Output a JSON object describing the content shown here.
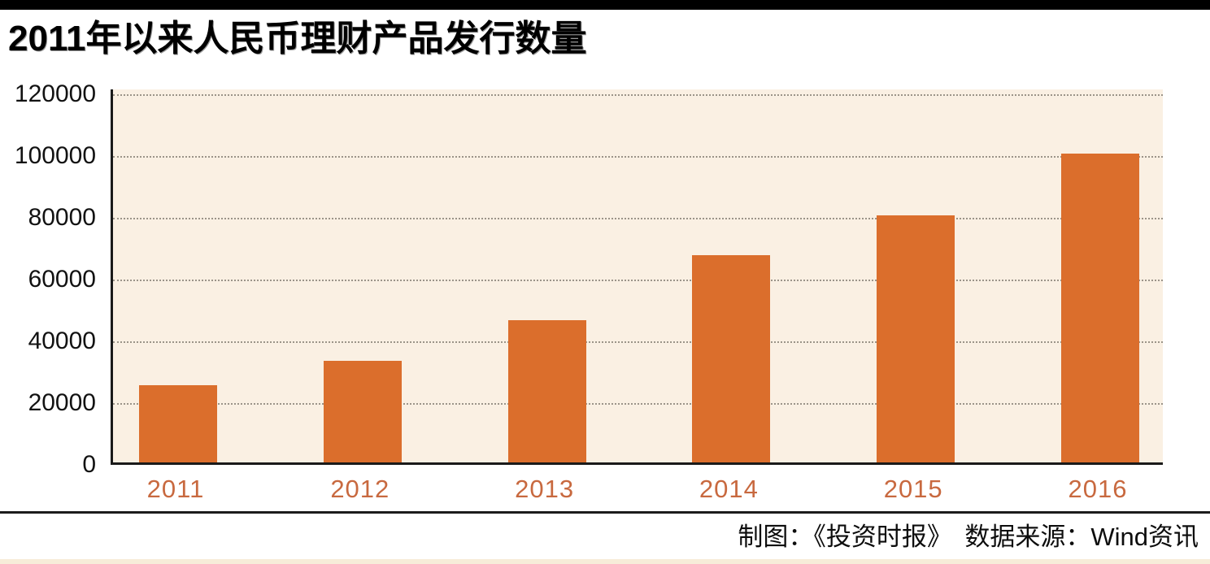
{
  "header": {
    "title": "2011年以来人民币理财产品发行数量"
  },
  "footer": {
    "credit": "制图：《投资时报》　数据来源：Wind资讯"
  },
  "colors": {
    "bar": "#db6e2c",
    "plot_background": "#faf0e3",
    "year_label": "#c8693f",
    "gridline": "#8b857a",
    "axis_line": "#1a1a1a",
    "top_bar": "#000000",
    "bottom_strip": "#f7ecd9"
  },
  "chart_data": {
    "type": "bar",
    "categories": [
      "2011",
      "2012",
      "2013",
      "2014",
      "2015",
      "2016"
    ],
    "values": [
      25000,
      33000,
      46000,
      67000,
      80000,
      100000
    ],
    "title": "2011年以来人民币理财产品发行数量",
    "xlabel": "",
    "ylabel": "",
    "ylim": [
      0,
      120000
    ],
    "yticks": [
      0,
      20000,
      40000,
      60000,
      80000,
      100000,
      120000
    ],
    "grid": "horizontal-dotted",
    "legend_position": "none",
    "bar_color": "#db6e2c",
    "background_color": "#faf0e3"
  }
}
